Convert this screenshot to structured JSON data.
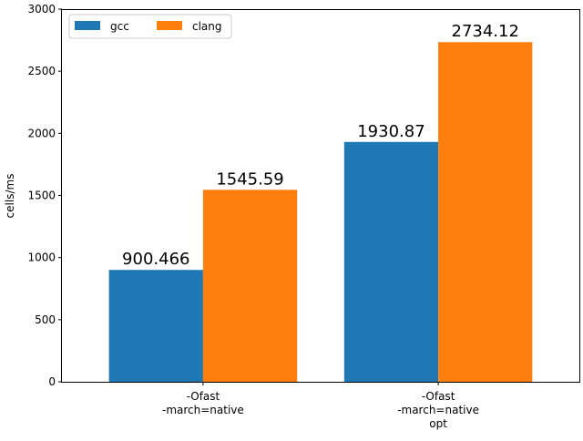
{
  "chart_data": {
    "type": "bar",
    "categories": [
      "-Ofast\n-march=native",
      "-Ofast\n-march=native\nopt"
    ],
    "series": [
      {
        "name": "gcc",
        "values": [
          900.466,
          1930.87
        ],
        "labels": [
          "900.466",
          "1930.87"
        ],
        "color": "#1f77b4"
      },
      {
        "name": "clang",
        "values": [
          1545.59,
          2734.12
        ],
        "labels": [
          "1545.59",
          "2734.12"
        ],
        "color": "#ff7f0e"
      }
    ],
    "title": "",
    "xlabel": "",
    "ylabel": "cells/ms",
    "ylim": [
      0,
      3000
    ],
    "yticks": [
      0,
      500,
      1000,
      1500,
      2000,
      2500,
      3000
    ],
    "ytick_labels": [
      "0",
      "500",
      "1000",
      "1500",
      "2000",
      "2500",
      "3000"
    ],
    "grid": false,
    "legend_position": "top-left"
  }
}
